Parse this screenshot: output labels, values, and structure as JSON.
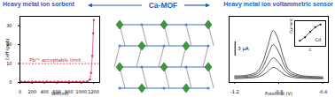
{
  "headings": {
    "left": "Heavy metal ion sorbent",
    "center": "Ca-MOF",
    "right": "Heavy metal ion voltammetric sensor"
  },
  "chart_data": [
    {
      "type": "line",
      "x_label": "Veff(ml)",
      "y_label": "Ceff (ppb)",
      "x": [
        20,
        80,
        140,
        200,
        260,
        320,
        380,
        440,
        500,
        560,
        620,
        680,
        740,
        800,
        860,
        920,
        980,
        1040,
        1100,
        1140,
        1160,
        1180,
        1195,
        1205
      ],
      "values": [
        0.3,
        0.4,
        0.3,
        0.3,
        0.4,
        0.3,
        0.3,
        0.4,
        0.3,
        0.3,
        0.4,
        0.3,
        0.3,
        0.4,
        0.3,
        0.4,
        0.3,
        0.4,
        0.6,
        1.5,
        5,
        14,
        26,
        33
      ],
      "color": "#e0407a",
      "marker": "circle",
      "line_style": "solid",
      "xlim": [
        0,
        1300
      ],
      "xticks": [
        0,
        200,
        400,
        600,
        800,
        1000,
        1200
      ],
      "ylim": [
        0,
        35
      ],
      "yticks": [
        0,
        10,
        20,
        30
      ],
      "annotations": [
        {
          "text": "Pb²⁺ acceptable limit",
          "y": 10,
          "color": "#d62728",
          "line_style": "dashed"
        }
      ]
    },
    {
      "type": "line",
      "x_label": "Potential (V)",
      "x": [
        -1.2,
        -1.1,
        -1.0,
        -0.95,
        -0.9,
        -0.85,
        -0.8,
        -0.75,
        -0.7,
        -0.6,
        -0.5,
        -0.4
      ],
      "series": [
        {
          "color": "#333333",
          "values": [
            0.8,
            0.9,
            1.1,
            1.5,
            2.3,
            3.2,
            2.6,
            1.7,
            1.2,
            0.9,
            0.8,
            0.8
          ]
        },
        {
          "color": "#333333",
          "values": [
            1.0,
            1.1,
            1.4,
            2.2,
            3.8,
            5.2,
            4.2,
            2.6,
            1.6,
            1.1,
            1.0,
            0.9
          ]
        },
        {
          "color": "#333333",
          "values": [
            1.2,
            1.3,
            1.8,
            3.0,
            5.6,
            8.0,
            6.4,
            3.6,
            2.0,
            1.3,
            1.1,
            1.0
          ]
        },
        {
          "color": "#333333",
          "values": [
            1.4,
            1.5,
            2.2,
            4.0,
            7.6,
            11.0,
            8.8,
            4.8,
            2.5,
            1.5,
            1.3,
            1.2
          ]
        }
      ],
      "xlim": [
        -1.25,
        -0.35
      ],
      "xticks": [
        -1.2,
        -0.8,
        -0.4
      ],
      "ylim": [
        0,
        14
      ],
      "tick_labels": "x",
      "scale_bar": {
        "value": 3,
        "label": "3 μA"
      }
    },
    {
      "type": "line",
      "x_label": "C",
      "y_label": "Current (μA)",
      "annotation": "Cd",
      "x": [
        10,
        20,
        30,
        40,
        50
      ],
      "values": [
        3,
        5,
        8,
        10.5,
        12
      ],
      "color": "#000000",
      "marker": "circle",
      "line_style": "solid",
      "xlim": [
        0,
        60
      ],
      "ylim": [
        0,
        14
      ],
      "tick_labels": false
    }
  ]
}
